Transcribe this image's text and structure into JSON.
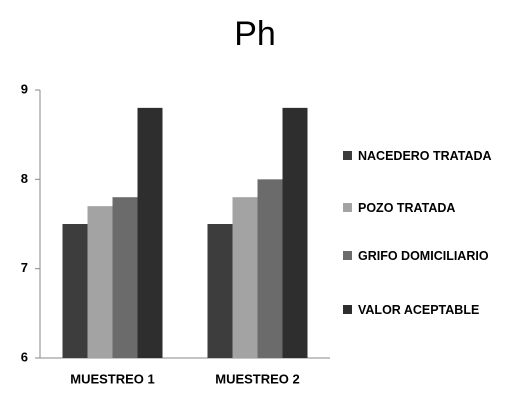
{
  "chart_data": {
    "type": "bar",
    "title": "Ph",
    "categories": [
      "MUESTREO 1",
      "MUESTREO 2"
    ],
    "series": [
      {
        "name": "NACEDERO TRATADA",
        "color": "#3d3d3d",
        "values": [
          7.5,
          7.5
        ]
      },
      {
        "name": "POZO TRATADA",
        "color": "#a3a3a3",
        "values": [
          7.7,
          7.8
        ]
      },
      {
        "name": "GRIFO DOMICILIARIO",
        "color": "#6b6b6b",
        "values": [
          7.8,
          8.0
        ]
      },
      {
        "name": "VALOR ACEPTABLE",
        "color": "#2e2e2e",
        "values": [
          8.8,
          8.8
        ]
      }
    ],
    "ylim": [
      6,
      9
    ],
    "yticks": [
      6,
      7,
      8,
      9
    ],
    "grid": false,
    "legend": "right"
  }
}
